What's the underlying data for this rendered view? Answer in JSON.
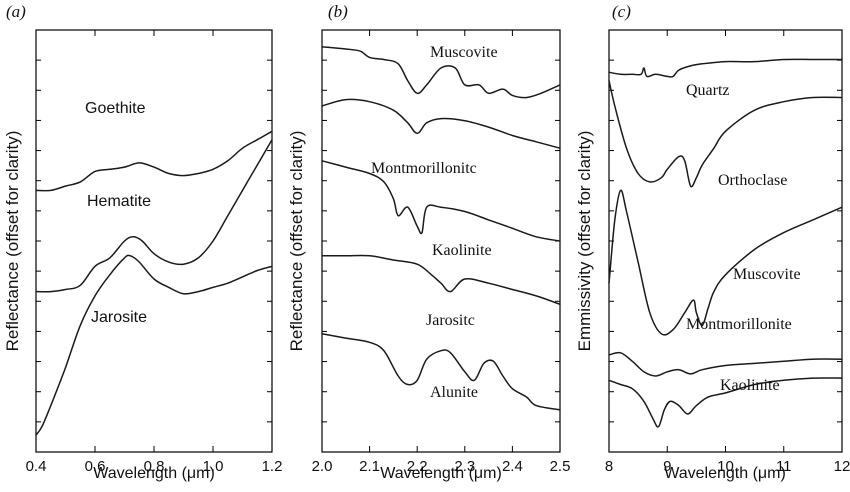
{
  "chart_data": [
    {
      "type": "line",
      "panel_label": "(a)",
      "xlabel": "Wavelength (μm)",
      "ylabel": "Reflectance (offset for clarity)",
      "xlim": [
        0.4,
        1.2
      ],
      "xticks": [
        "0.4",
        "0.6",
        "0.8",
        "1.0",
        "1.2"
      ],
      "series": [
        {
          "name": "Goethite",
          "x": [
            0.4,
            0.45,
            0.5,
            0.55,
            0.6,
            0.65,
            0.7,
            0.75,
            0.8,
            0.85,
            0.9,
            0.95,
            1.0,
            1.05,
            1.1,
            1.15,
            1.2
          ],
          "y": [
            0.62,
            0.62,
            0.63,
            0.64,
            0.665,
            0.67,
            0.675,
            0.685,
            0.675,
            0.66,
            0.655,
            0.66,
            0.67,
            0.69,
            0.72,
            0.74,
            0.76
          ]
        },
        {
          "name": "Hematite",
          "x": [
            0.4,
            0.45,
            0.5,
            0.55,
            0.6,
            0.65,
            0.7,
            0.73,
            0.76,
            0.8,
            0.85,
            0.9,
            0.95,
            1.0,
            1.05,
            1.1,
            1.15,
            1.2
          ],
          "y": [
            0.38,
            0.38,
            0.385,
            0.395,
            0.44,
            0.46,
            0.5,
            0.51,
            0.5,
            0.47,
            0.45,
            0.445,
            0.46,
            0.5,
            0.56,
            0.62,
            0.68,
            0.74
          ]
        },
        {
          "name": "Jarosite",
          "x": [
            0.4,
            0.42,
            0.45,
            0.5,
            0.55,
            0.6,
            0.65,
            0.7,
            0.72,
            0.75,
            0.8,
            0.85,
            0.9,
            0.95,
            1.0,
            1.05,
            1.1,
            1.15,
            1.2
          ],
          "y": [
            0.04,
            0.06,
            0.11,
            0.2,
            0.3,
            0.37,
            0.42,
            0.46,
            0.465,
            0.45,
            0.41,
            0.39,
            0.375,
            0.38,
            0.39,
            0.4,
            0.415,
            0.43,
            0.44
          ]
        }
      ],
      "labels": [
        "Goethite",
        "Hematite",
        "Jarosite"
      ]
    },
    {
      "type": "line",
      "panel_label": "(b)",
      "xlabel": "Wavelength (μm)",
      "ylabel": "Reflectance (offset for clarity)",
      "xlim": [
        2.0,
        2.5
      ],
      "xticks": [
        "2.0",
        "2.1",
        "2.2",
        "2.3",
        "2.4",
        "2.5"
      ],
      "series": [
        {
          "name": "Muscovite",
          "x": [
            2.0,
            2.05,
            2.08,
            2.1,
            2.13,
            2.16,
            2.18,
            2.2,
            2.22,
            2.25,
            2.28,
            2.3,
            2.33,
            2.35,
            2.38,
            2.4,
            2.43,
            2.46,
            2.5
          ],
          "y": [
            0.96,
            0.955,
            0.95,
            0.935,
            0.93,
            0.92,
            0.88,
            0.85,
            0.87,
            0.91,
            0.91,
            0.87,
            0.87,
            0.85,
            0.86,
            0.845,
            0.84,
            0.85,
            0.87
          ]
        },
        {
          "name": "Montmorillonitc",
          "x": [
            2.0,
            2.05,
            2.1,
            2.15,
            2.18,
            2.2,
            2.22,
            2.25,
            2.3,
            2.35,
            2.4,
            2.45,
            2.5
          ],
          "y": [
            0.82,
            0.835,
            0.83,
            0.81,
            0.78,
            0.755,
            0.78,
            0.79,
            0.785,
            0.77,
            0.75,
            0.735,
            0.72
          ]
        },
        {
          "name": "Kaolinite",
          "x": [
            2.0,
            2.05,
            2.1,
            2.13,
            2.15,
            2.16,
            2.18,
            2.2,
            2.21,
            2.22,
            2.25,
            2.3,
            2.35,
            2.4,
            2.45,
            2.5
          ],
          "y": [
            0.69,
            0.675,
            0.66,
            0.64,
            0.6,
            0.56,
            0.58,
            0.535,
            0.52,
            0.58,
            0.58,
            0.57,
            0.55,
            0.53,
            0.51,
            0.5
          ]
        },
        {
          "name": "Jarositc",
          "x": [
            2.0,
            2.05,
            2.1,
            2.15,
            2.2,
            2.23,
            2.25,
            2.27,
            2.3,
            2.35,
            2.4,
            2.45,
            2.5
          ],
          "y": [
            0.465,
            0.465,
            0.465,
            0.455,
            0.445,
            0.42,
            0.4,
            0.38,
            0.41,
            0.4,
            0.385,
            0.37,
            0.35
          ]
        },
        {
          "name": "Alunite",
          "x": [
            2.0,
            2.05,
            2.1,
            2.13,
            2.16,
            2.18,
            2.2,
            2.22,
            2.25,
            2.27,
            2.3,
            2.32,
            2.34,
            2.36,
            2.38,
            2.4,
            2.43,
            2.45,
            2.5
          ],
          "y": [
            0.28,
            0.27,
            0.26,
            0.24,
            0.18,
            0.16,
            0.17,
            0.22,
            0.24,
            0.235,
            0.19,
            0.17,
            0.21,
            0.215,
            0.18,
            0.15,
            0.13,
            0.11,
            0.1
          ]
        }
      ],
      "labels": [
        "Muscovite",
        "Montmorillonitc",
        "Kaolinite",
        "Jarositc",
        "Alunite"
      ]
    },
    {
      "type": "line",
      "panel_label": "(c)",
      "xlabel": "Wavelength (μm)",
      "ylabel": "Emmissivity (offset for clarity)",
      "xlim": [
        8,
        12
      ],
      "xticks": [
        "8",
        "9",
        "10",
        "11",
        "12"
      ],
      "series": [
        {
          "name": "Quartz",
          "x": [
            8,
            8.2,
            8.4,
            8.55,
            8.6,
            8.65,
            8.8,
            9.0,
            9.1,
            9.2,
            9.4,
            9.6,
            10,
            10.5,
            11,
            11.5,
            12
          ],
          "y": [
            0.9,
            0.895,
            0.895,
            0.895,
            0.91,
            0.89,
            0.895,
            0.89,
            0.89,
            0.905,
            0.915,
            0.92,
            0.925,
            0.925,
            0.93,
            0.93,
            0.93
          ]
        },
        {
          "name": "Orthoclase",
          "x": [
            8,
            8.1,
            8.3,
            8.5,
            8.7,
            8.9,
            9.0,
            9.2,
            9.3,
            9.4,
            9.5,
            9.6,
            9.8,
            10,
            10.5,
            11,
            11.5,
            12
          ],
          "y": [
            0.88,
            0.82,
            0.72,
            0.66,
            0.64,
            0.65,
            0.67,
            0.7,
            0.69,
            0.63,
            0.65,
            0.68,
            0.72,
            0.76,
            0.81,
            0.83,
            0.84,
            0.84
          ]
        },
        {
          "name": "Muscovite",
          "x": [
            8,
            8.1,
            8.2,
            8.3,
            8.5,
            8.7,
            8.9,
            9.1,
            9.3,
            9.45,
            9.5,
            9.6,
            9.7,
            9.8,
            10,
            10.5,
            11,
            11.5,
            12
          ],
          "y": [
            0.4,
            0.55,
            0.62,
            0.57,
            0.45,
            0.33,
            0.28,
            0.29,
            0.33,
            0.36,
            0.33,
            0.3,
            0.34,
            0.38,
            0.42,
            0.48,
            0.52,
            0.55,
            0.58
          ]
        },
        {
          "name": "Montmorillonite",
          "x": [
            8,
            8.2,
            8.4,
            8.6,
            8.8,
            9.0,
            9.2,
            9.4,
            9.6,
            10,
            10.5,
            11,
            11.5,
            12
          ],
          "y": [
            0.23,
            0.235,
            0.215,
            0.19,
            0.18,
            0.19,
            0.195,
            0.185,
            0.195,
            0.205,
            0.21,
            0.215,
            0.22,
            0.22
          ]
        },
        {
          "name": "Kaolinite",
          "x": [
            8,
            8.2,
            8.4,
            8.6,
            8.75,
            8.85,
            8.95,
            9.05,
            9.2,
            9.35,
            9.5,
            9.7,
            10,
            10.5,
            11,
            11.5,
            12
          ],
          "y": [
            0.17,
            0.16,
            0.15,
            0.12,
            0.08,
            0.06,
            0.1,
            0.12,
            0.11,
            0.09,
            0.11,
            0.13,
            0.14,
            0.16,
            0.17,
            0.175,
            0.175
          ]
        }
      ],
      "labels": [
        "Quartz",
        "Orthoclase",
        "Muscovite",
        "Montmorillonite",
        "Kaolinite"
      ]
    }
  ]
}
